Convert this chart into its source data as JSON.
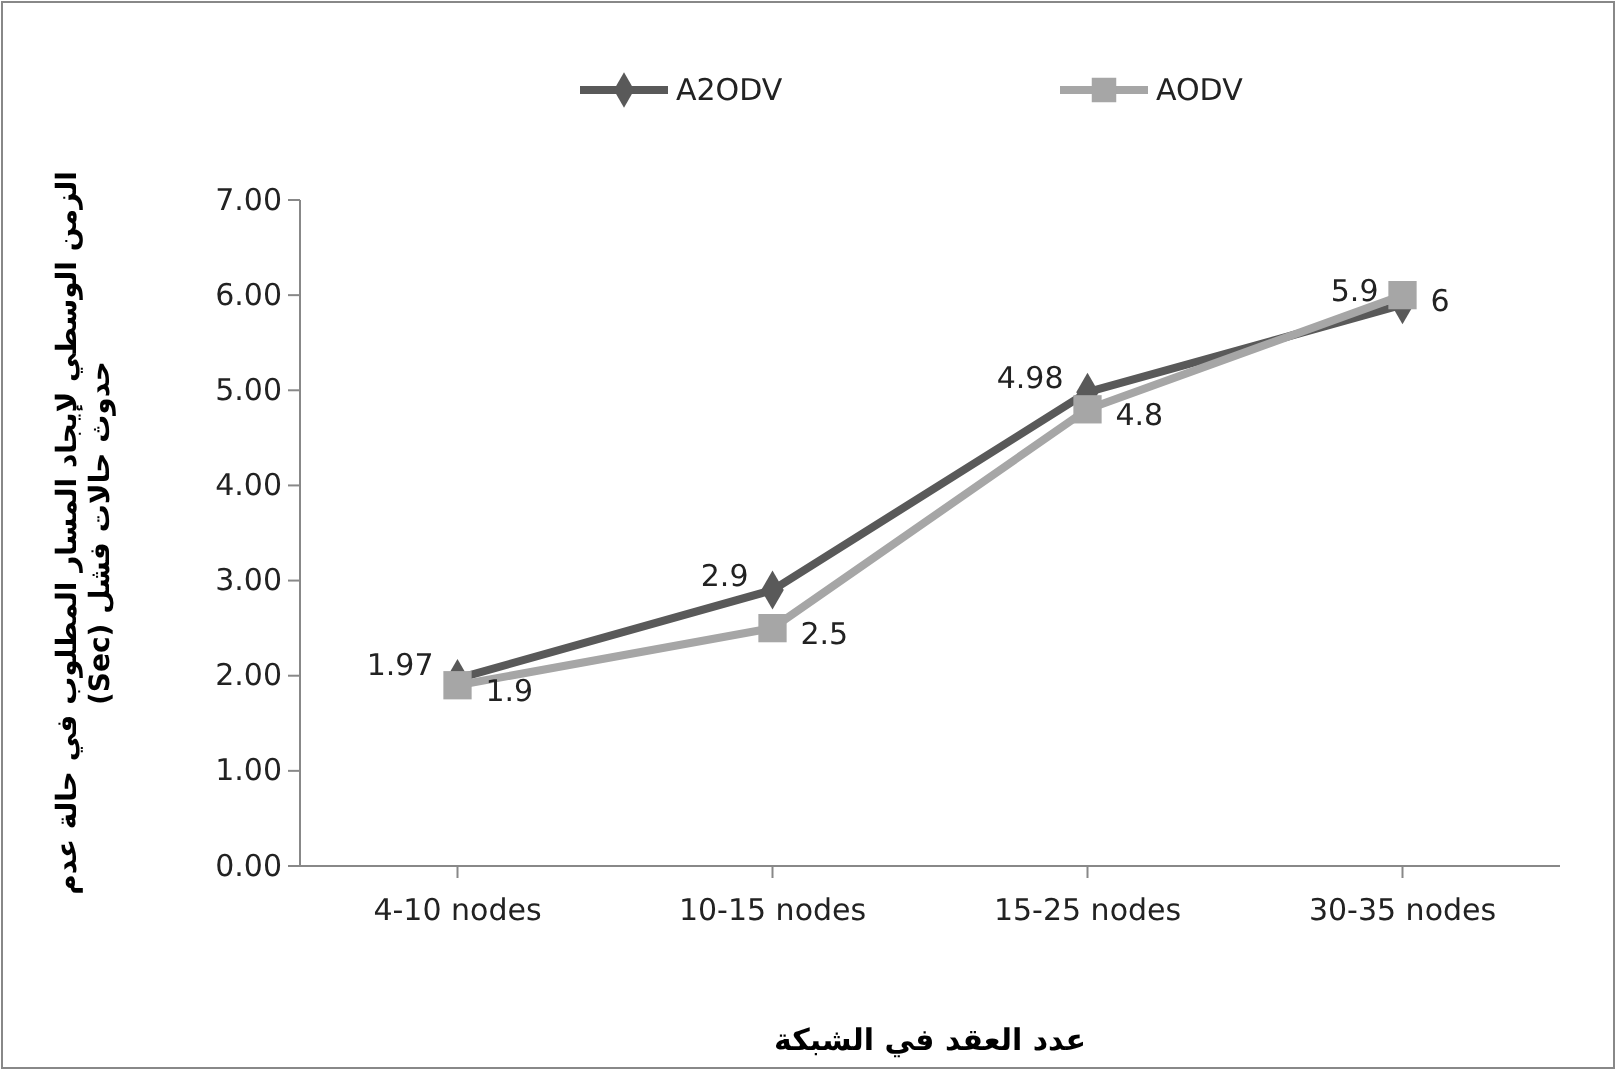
{
  "chart_data": {
    "type": "line",
    "xlabel": "عدد العقد في الشبكة",
    "ylabel": "الزمن  الوسطي لإيجاد المسار المطلوب في حالة عدم حدوث حالات فشل (Sec)",
    "categories": [
      "4-10 nodes",
      "10-15 nodes",
      "15-25 nodes",
      "30-35 nodes"
    ],
    "series": [
      {
        "name": "A2ODV",
        "color": "#595959",
        "marker": "diamond",
        "values": [
          1.97,
          2.9,
          4.98,
          5.9
        ]
      },
      {
        "name": "AODV",
        "color": "#a6a6a6",
        "marker": "square",
        "values": [
          1.9,
          2.5,
          4.8,
          6
        ]
      }
    ],
    "ylim": [
      0,
      7
    ],
    "yticks": [
      {
        "value": 0,
        "label": "0.00"
      },
      {
        "value": 1,
        "label": "1.00"
      },
      {
        "value": 2,
        "label": "2.00"
      },
      {
        "value": 3,
        "label": "3.00"
      },
      {
        "value": 4,
        "label": "4.00"
      },
      {
        "value": 5,
        "label": "5.00"
      },
      {
        "value": 6,
        "label": "6.00"
      },
      {
        "value": 7,
        "label": "7.00"
      }
    ],
    "data_labels": true,
    "legend": "top",
    "grid": false
  }
}
